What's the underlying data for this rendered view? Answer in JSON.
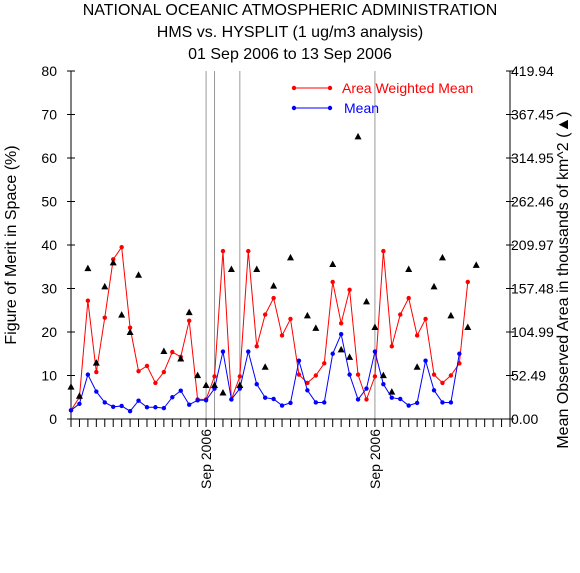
{
  "chart_data": {
    "type": "line",
    "title": [
      "NATIONAL OCEANIC ATMOSPHERIC ADMINISTRATION",
      "HMS vs. HYSPLIT (1 ug/m3 analysis)",
      "01 Sep 2006 to 13 Sep 2006"
    ],
    "ylabel": "Figure of Merit in Space (%)",
    "y2label": "Mean Observed Area in thousands of km^2 (▲)",
    "ylim": [
      0,
      80
    ],
    "y2lim": [
      0,
      419.94
    ],
    "xlim": [
      0,
      52
    ],
    "yticks": [
      0,
      10,
      20,
      30,
      40,
      50,
      60,
      70,
      80
    ],
    "y2ticks": [
      "0.00",
      "52.49",
      "104.99",
      "157.48",
      "209.97",
      "262.46",
      "314.95",
      "367.45",
      "419.94"
    ],
    "xtick_labels": [
      {
        "x": 16,
        "label": "Sep 2006"
      },
      {
        "x": 36,
        "label": "Sep 2006"
      }
    ],
    "vlines": [
      16,
      17,
      20,
      36
    ],
    "series": [
      {
        "name": "Area Weighted Mean",
        "color": "#ff0000",
        "values": [
          2,
          5,
          27.2,
          10.8,
          23.3,
          36.7,
          39.5,
          21,
          11,
          12.2,
          8.3,
          10.8,
          15.4,
          14.3,
          22.6,
          4.5,
          4.5,
          9.8,
          38.6,
          4.5,
          9.8,
          38.6,
          16.7,
          24,
          27.8,
          19.2,
          23,
          10.2,
          8.3,
          10,
          12.8,
          31.5,
          22,
          29.7,
          10.2,
          4.5,
          9.8,
          38.6,
          16.7,
          24,
          27.8,
          19.2,
          23,
          10.2,
          8.3,
          10,
          12.8,
          31.5
        ]
      },
      {
        "name": "Mean",
        "color": "#0000ff",
        "values": [
          2,
          3.5,
          10.2,
          6.3,
          3.8,
          2.8,
          3,
          1.8,
          4.2,
          2.7,
          2.7,
          2.5,
          5,
          6.5,
          3.3,
          4.3,
          4.3,
          7,
          15.5,
          4.5,
          7,
          15.5,
          8,
          4.9,
          4.6,
          3.1,
          3.7,
          13.4,
          6.6,
          3.8,
          3.8,
          15,
          19.5,
          10.2,
          4.5,
          7,
          15.5,
          8,
          4.9,
          4.6,
          3.1,
          3.7,
          13.4,
          6.6,
          3.8,
          3.8,
          15
        ]
      },
      {
        "name": "Mean Observed Area",
        "marker": "triangle",
        "axis": "right",
        "color": "#000000",
        "x": [
          0,
          1,
          2,
          3,
          4,
          5,
          6,
          7,
          8,
          11,
          13,
          14,
          15,
          16,
          17,
          18,
          19,
          20,
          22,
          23,
          24,
          26,
          28,
          29,
          31,
          32,
          33,
          34,
          35,
          36,
          37,
          38,
          40,
          41,
          43,
          44,
          45,
          47,
          48
        ],
        "values": [
          39,
          28,
          182,
          68,
          160,
          189,
          126,
          105,
          174,
          82,
          73,
          129,
          53,
          41,
          41,
          32,
          181,
          41,
          181,
          63,
          161,
          195,
          125,
          110,
          187,
          84,
          75,
          341,
          142,
          111,
          53,
          33,
          181,
          63,
          160,
          195,
          125,
          111,
          186
        ]
      }
    ],
    "legend_position": "top-right"
  }
}
